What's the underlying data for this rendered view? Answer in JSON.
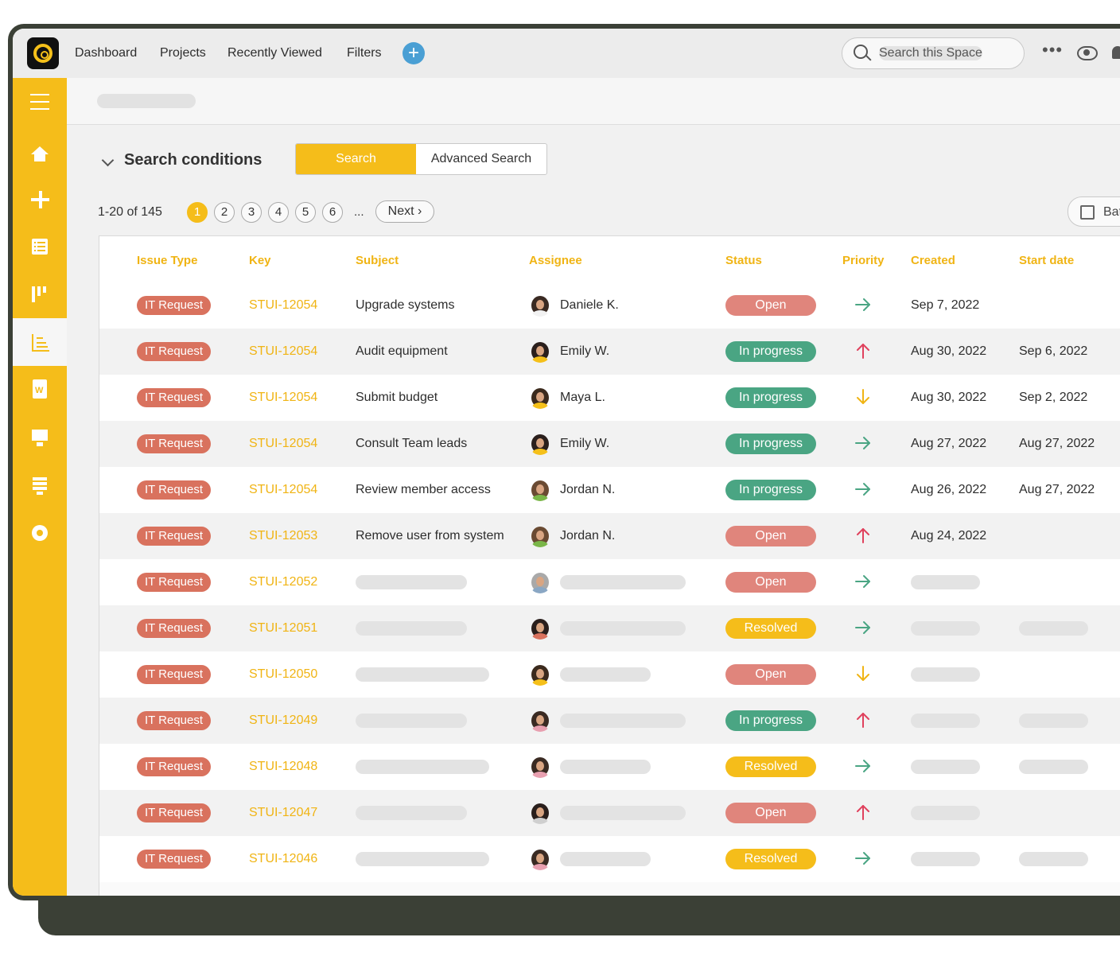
{
  "colors": {
    "accent": "#f5bd1a",
    "open": "#e0857c",
    "in_progress": "#4aa583",
    "resolved": "#f5bd1a",
    "type_pill": "#d9725e",
    "arrow_right": "#4aa583",
    "arrow_up": "#e0415d",
    "arrow_down": "#f0b414"
  },
  "topnav": {
    "items": [
      "Dashboard",
      "Projects",
      "Recently Viewed",
      "Filters"
    ],
    "search_placeholder": "Search this Space"
  },
  "sidebar": {
    "icons": [
      "menu-icon",
      "home-icon",
      "create-icon",
      "list-icon",
      "board-icon",
      "tree-icon",
      "document-icon",
      "presentation-icon",
      "server-icon",
      "gear-icon"
    ],
    "active": "tree-icon"
  },
  "search": {
    "title": "Search conditions",
    "search_label": "Search",
    "advanced_label": "Advanced Search"
  },
  "pager": {
    "info": "1-20 of 145",
    "pages": [
      "1",
      "2",
      "3",
      "4",
      "5",
      "6"
    ],
    "current": "1",
    "ellipsis": "...",
    "next_label": "Next"
  },
  "batch": {
    "label": "Bat"
  },
  "table": {
    "headers": [
      "Issue Type",
      "Key",
      "Subject",
      "Assignee",
      "Status",
      "Priority",
      "Created",
      "Start date"
    ],
    "rows": [
      {
        "type": "IT Request",
        "key": "STUI-12054",
        "subject": "Upgrade systems",
        "assignee": "Daniele K.",
        "status": "Open",
        "priority": "right",
        "created": "Sep 7, 2022",
        "start": ""
      },
      {
        "type": "IT Request",
        "key": "STUI-12054",
        "subject": "Audit equipment",
        "assignee": "Emily W.",
        "status": "In progress",
        "priority": "up",
        "created": "Aug 30, 2022",
        "start": "Sep 6, 2022"
      },
      {
        "type": "IT Request",
        "key": "STUI-12054",
        "subject": "Submit budget",
        "assignee": "Maya L.",
        "status": "In progress",
        "priority": "down",
        "created": "Aug 30, 2022",
        "start": "Sep 2, 2022"
      },
      {
        "type": "IT Request",
        "key": "STUI-12054",
        "subject": "Consult Team leads",
        "assignee": "Emily W.",
        "status": "In progress",
        "priority": "right",
        "created": "Aug 27, 2022",
        "start": "Aug 27, 2022"
      },
      {
        "type": "IT Request",
        "key": "STUI-12054",
        "subject": "Review member access",
        "assignee": "Jordan N.",
        "status": "In progress",
        "priority": "right",
        "created": "Aug 26, 2022",
        "start": "Aug 27, 2022"
      },
      {
        "type": "IT Request",
        "key": "STUI-12053",
        "subject": "Remove user from system",
        "assignee": "Jordan N.",
        "status": "Open",
        "priority": "up",
        "created": "Aug 24, 2022",
        "start": ""
      },
      {
        "type": "IT Request",
        "key": "STUI-12052",
        "status": "Open",
        "priority": "right",
        "start_placeholder": false
      },
      {
        "type": "IT Request",
        "key": "STUI-12051",
        "status": "Resolved",
        "priority": "right",
        "start_placeholder": true
      },
      {
        "type": "IT Request",
        "key": "STUI-12050",
        "status": "Open",
        "priority": "down",
        "start_placeholder": false
      },
      {
        "type": "IT Request",
        "key": "STUI-12049",
        "status": "In progress",
        "priority": "up",
        "start_placeholder": true
      },
      {
        "type": "IT Request",
        "key": "STUI-12048",
        "status": "Resolved",
        "priority": "right",
        "start_placeholder": true
      },
      {
        "type": "IT Request",
        "key": "STUI-12047",
        "status": "Open",
        "priority": "up",
        "start_placeholder": false
      },
      {
        "type": "IT Request",
        "key": "STUI-12046",
        "status": "Resolved",
        "priority": "right",
        "start_placeholder": true
      }
    ]
  }
}
